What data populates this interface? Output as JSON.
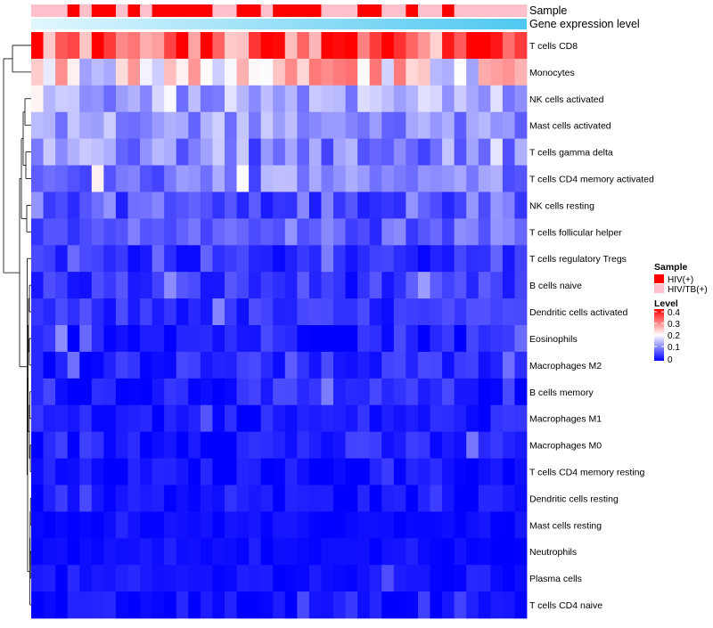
{
  "chart_data": {
    "type": "heatmap",
    "title": "",
    "annotation_rows": [
      "Sample",
      "Gene expression level"
    ],
    "sample_pattern": "LLLHLHHLHLHHHHHLLHHLHHHHLLLHHLLHLLHLLLLLL",
    "group_codes": {
      "H": "HIV(+)",
      "L": "HIV/TB(+)"
    },
    "rows": [
      "T cells CD8",
      "Monocytes",
      "NK cells activated",
      "Mast cells activated",
      "T cells gamma delta",
      "T cells CD4 memory activated",
      "NK cells resting",
      "T cells follicular helper",
      "T cells regulatory  Tregs",
      "B cells naive",
      "Dendritic cells activated",
      "Eosinophils",
      "Macrophages M2",
      "B cells memory",
      "Macrophages M1",
      "Macrophages M0",
      "T cells CD4 memory resting",
      "Dendritic cells resting",
      "Mast cells resting",
      "Neutrophils",
      "Plasma cells",
      "T cells CD4 naive"
    ],
    "n_columns": 41,
    "row_baseline": [
      0.32,
      0.22,
      0.13,
      0.12,
      0.1,
      0.1,
      0.07,
      0.07,
      0.03,
      0.04,
      0.035,
      0.03,
      0.03,
      0.025,
      0.02,
      0.025,
      0.012,
      0.012,
      0.008,
      0.006,
      0.012,
      0.012
    ],
    "row_spread": [
      0.09,
      0.1,
      0.05,
      0.05,
      0.06,
      0.05,
      0.05,
      0.04,
      0.03,
      0.035,
      0.03,
      0.035,
      0.03,
      0.035,
      0.025,
      0.03,
      0.02,
      0.02,
      0.01,
      0.01,
      0.02,
      0.02
    ],
    "color_scale": {
      "low": "#0000FF",
      "mid": "#FFFFFF",
      "high": "#FF0000",
      "range": [
        0,
        0.4
      ]
    },
    "dendrogram_order": "rows clustered; top split separates T cells CD8 + Monocytes from all other rows",
    "legends": {
      "sample": {
        "title": "Sample",
        "items": [
          {
            "label": "HIV(+)",
            "color": "#FF0000"
          },
          {
            "label": "HIV/TB(+)",
            "color": "#FFC0CB"
          }
        ]
      },
      "level": {
        "title": "Level",
        "ticks": [
          "0.4",
          "0.3",
          "0.2",
          "0.1",
          "0"
        ]
      }
    },
    "expression_bar": {
      "from_color": "#E0F7FF",
      "to_color": "#4FC8F0"
    }
  }
}
